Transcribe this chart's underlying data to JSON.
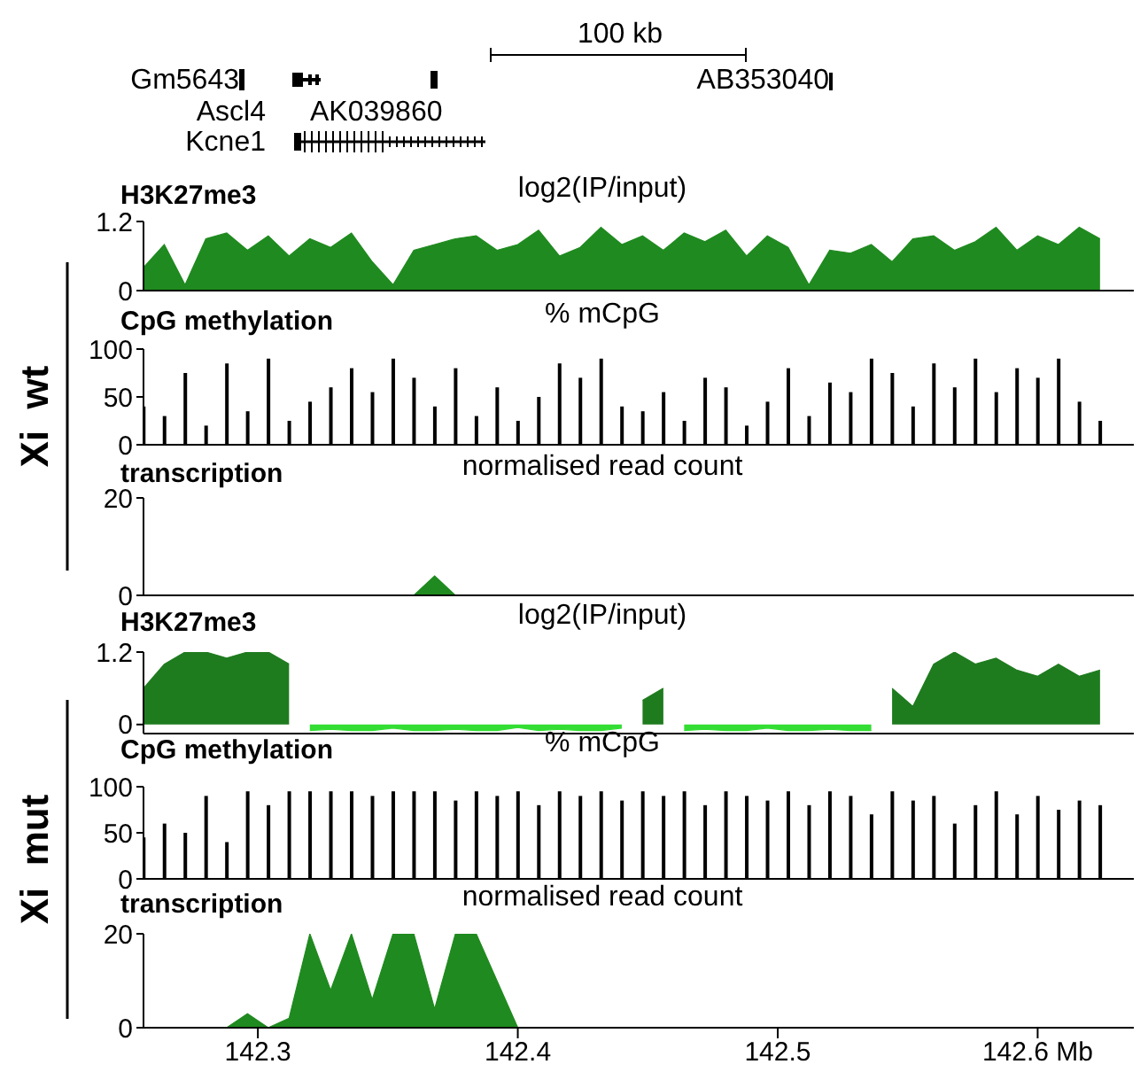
{
  "chart_data": [
    {
      "type": "area",
      "title": "H3K27me3",
      "subtitle": "log2(IP/input)",
      "annotations": [
        "100 kb",
        "Gm5643",
        "Ascl4",
        "AK039860",
        "Kcne1",
        "AB353040",
        "Xi  wt"
      ],
      "x": [
        142.256,
        142.264,
        142.272,
        142.28,
        142.288,
        142.296,
        142.304,
        142.312,
        142.32,
        142.328,
        142.336,
        142.344,
        142.352,
        142.36,
        142.368,
        142.376,
        142.384,
        142.392,
        142.4,
        142.408,
        142.416,
        142.424,
        142.432,
        142.44,
        142.448,
        142.456,
        142.464,
        142.472,
        142.48,
        142.488,
        142.496,
        142.504,
        142.512,
        142.52,
        142.528,
        142.536,
        142.544,
        142.552,
        142.56,
        142.568,
        142.576,
        142.584,
        142.592,
        142.6,
        142.608,
        142.616,
        142.624
      ],
      "xlim": [
        142.256,
        142.637
      ],
      "xticks": [
        142.3,
        142.4,
        142.5,
        142.6
      ],
      "ylim": [
        0,
        1.2
      ],
      "yticks": [
        0,
        1.2
      ],
      "tick_labels": "y",
      "series": [
        {
          "color": "#1f8a1f",
          "values": [
            0.4,
            0.8,
            0.1,
            0.9,
            1.0,
            0.7,
            0.95,
            0.6,
            0.9,
            0.75,
            1.0,
            0.5,
            0.1,
            0.7,
            0.8,
            0.9,
            0.95,
            0.7,
            0.8,
            1.05,
            0.6,
            0.75,
            1.1,
            0.8,
            0.95,
            0.7,
            1.0,
            0.85,
            1.05,
            0.6,
            0.95,
            0.75,
            0.1,
            0.7,
            0.65,
            0.8,
            0.5,
            0.9,
            0.95,
            0.7,
            0.85,
            1.1,
            0.7,
            0.95,
            0.8,
            1.1,
            0.9
          ]
        }
      ]
    },
    {
      "type": "bar",
      "title": "CpG methylation",
      "subtitle": "% mCpG",
      "x": [
        142.256,
        142.264,
        142.272,
        142.28,
        142.288,
        142.296,
        142.304,
        142.312,
        142.32,
        142.328,
        142.336,
        142.344,
        142.352,
        142.36,
        142.368,
        142.376,
        142.384,
        142.392,
        142.4,
        142.408,
        142.416,
        142.424,
        142.432,
        142.44,
        142.448,
        142.456,
        142.464,
        142.472,
        142.48,
        142.488,
        142.496,
        142.504,
        142.512,
        142.52,
        142.528,
        142.536,
        142.544,
        142.552,
        142.56,
        142.568,
        142.576,
        142.584,
        142.592,
        142.6,
        142.608,
        142.616,
        142.624
      ],
      "xlim": [
        142.256,
        142.637
      ],
      "xticks": [
        142.3,
        142.4,
        142.5,
        142.6
      ],
      "ylim": [
        0,
        100
      ],
      "yticks": [
        0,
        50,
        100
      ],
      "tick_labels": "y",
      "series": [
        {
          "color": "#000000",
          "values": [
            40,
            30,
            75,
            20,
            85,
            35,
            90,
            25,
            45,
            60,
            80,
            55,
            90,
            70,
            40,
            80,
            30,
            60,
            25,
            50,
            85,
            70,
            90,
            40,
            35,
            55,
            25,
            70,
            60,
            20,
            45,
            80,
            30,
            65,
            55,
            90,
            75,
            40,
            85,
            60,
            90,
            55,
            80,
            70,
            90,
            45,
            25
          ]
        }
      ]
    },
    {
      "type": "area",
      "title": "transcription",
      "subtitle": "normalised read count",
      "x": [
        142.256,
        142.264,
        142.272,
        142.28,
        142.288,
        142.296,
        142.304,
        142.312,
        142.32,
        142.328,
        142.336,
        142.344,
        142.352,
        142.36,
        142.368,
        142.376,
        142.384,
        142.392,
        142.4,
        142.408,
        142.416,
        142.424,
        142.432,
        142.44,
        142.448,
        142.456,
        142.464,
        142.472,
        142.48,
        142.488,
        142.496,
        142.504,
        142.512,
        142.52,
        142.528,
        142.536,
        142.544,
        142.552,
        142.56,
        142.568,
        142.576,
        142.584,
        142.592,
        142.6,
        142.608,
        142.616,
        142.624
      ],
      "xlim": [
        142.256,
        142.637
      ],
      "xticks": [
        142.3,
        142.4,
        142.5,
        142.6
      ],
      "ylim": [
        0,
        20
      ],
      "yticks": [
        0,
        20
      ],
      "tick_labels": "y",
      "series": [
        {
          "color": "#1f8a1f",
          "values": [
            0,
            0,
            0,
            0,
            0,
            0,
            0,
            0,
            0,
            0,
            0,
            0,
            0,
            0,
            4,
            0,
            0,
            0,
            0,
            0,
            0,
            0,
            0,
            0,
            0,
            0,
            0,
            0,
            0,
            0,
            0,
            0,
            0,
            0,
            0,
            0,
            0,
            0,
            0,
            0,
            0,
            0,
            0,
            0,
            0,
            0,
            0
          ]
        }
      ]
    },
    {
      "type": "area",
      "title": "H3K27me3",
      "subtitle": "log2(IP/input)",
      "annotations": [
        "Xi  mut"
      ],
      "x": [
        142.256,
        142.264,
        142.272,
        142.28,
        142.288,
        142.296,
        142.304,
        142.312,
        142.32,
        142.328,
        142.336,
        142.344,
        142.352,
        142.36,
        142.368,
        142.376,
        142.384,
        142.392,
        142.4,
        142.408,
        142.416,
        142.424,
        142.432,
        142.44,
        142.448,
        142.456,
        142.464,
        142.472,
        142.48,
        142.488,
        142.496,
        142.504,
        142.512,
        142.52,
        142.528,
        142.536,
        142.544,
        142.552,
        142.56,
        142.568,
        142.576,
        142.584,
        142.592,
        142.6,
        142.608,
        142.616,
        142.624
      ],
      "xlim": [
        142.256,
        142.637
      ],
      "xticks": [
        142.3,
        142.4,
        142.5,
        142.6
      ],
      "ylim": [
        -0.15,
        1.2
      ],
      "yticks": [
        0,
        1.2
      ],
      "tick_labels": "y",
      "series": [
        {
          "color": "#1e7b1e",
          "values": [
            0.6,
            1.0,
            1.2,
            1.2,
            1.1,
            1.2,
            1.2,
            1.0,
            null,
            null,
            null,
            null,
            null,
            null,
            null,
            null,
            null,
            null,
            null,
            null,
            null,
            null,
            null,
            null,
            0.4,
            0.6,
            null,
            null,
            null,
            null,
            null,
            null,
            null,
            null,
            null,
            null,
            0.6,
            0.3,
            1.0,
            1.2,
            1.0,
            1.1,
            0.9,
            0.8,
            1.0,
            0.8,
            0.9
          ]
        },
        {
          "color": "#33dd33",
          "values": [
            null,
            null,
            null,
            null,
            null,
            null,
            null,
            null,
            -0.1,
            -0.08,
            -0.1,
            -0.1,
            -0.06,
            -0.1,
            -0.1,
            -0.08,
            -0.1,
            -0.1,
            -0.05,
            -0.1,
            -0.08,
            -0.1,
            -0.1,
            -0.06,
            null,
            null,
            -0.1,
            -0.08,
            -0.1,
            -0.1,
            -0.06,
            -0.1,
            -0.1,
            -0.08,
            -0.1,
            -0.1,
            null,
            null,
            null,
            null,
            null,
            null,
            null,
            null,
            null,
            null,
            null
          ]
        }
      ]
    },
    {
      "type": "bar",
      "title": "CpG methylation",
      "subtitle": "% mCpG",
      "x": [
        142.256,
        142.264,
        142.272,
        142.28,
        142.288,
        142.296,
        142.304,
        142.312,
        142.32,
        142.328,
        142.336,
        142.344,
        142.352,
        142.36,
        142.368,
        142.376,
        142.384,
        142.392,
        142.4,
        142.408,
        142.416,
        142.424,
        142.432,
        142.44,
        142.448,
        142.456,
        142.464,
        142.472,
        142.48,
        142.488,
        142.496,
        142.504,
        142.512,
        142.52,
        142.528,
        142.536,
        142.544,
        142.552,
        142.56,
        142.568,
        142.576,
        142.584,
        142.592,
        142.6,
        142.608,
        142.616,
        142.624
      ],
      "xlim": [
        142.256,
        142.637
      ],
      "xticks": [
        142.3,
        142.4,
        142.5,
        142.6
      ],
      "ylim": [
        0,
        100
      ],
      "yticks": [
        0,
        50,
        100
      ],
      "tick_labels": "y",
      "series": [
        {
          "color": "#000000",
          "values": [
            45,
            60,
            50,
            90,
            40,
            95,
            80,
            95,
            95,
            95,
            95,
            90,
            95,
            95,
            95,
            85,
            95,
            90,
            95,
            80,
            95,
            90,
            95,
            85,
            95,
            90,
            95,
            80,
            95,
            90,
            85,
            95,
            80,
            95,
            90,
            70,
            95,
            85,
            90,
            60,
            80,
            95,
            70,
            90,
            75,
            85,
            80
          ]
        }
      ]
    },
    {
      "type": "area",
      "title": "transcription",
      "subtitle": "normalised read count",
      "x": [
        142.256,
        142.264,
        142.272,
        142.28,
        142.288,
        142.296,
        142.304,
        142.312,
        142.32,
        142.328,
        142.336,
        142.344,
        142.352,
        142.36,
        142.368,
        142.376,
        142.384,
        142.392,
        142.4,
        142.408,
        142.416,
        142.424,
        142.432,
        142.44,
        142.448,
        142.456,
        142.464,
        142.472,
        142.48,
        142.488,
        142.496,
        142.504,
        142.512,
        142.52,
        142.528,
        142.536,
        142.544,
        142.552,
        142.56,
        142.568,
        142.576,
        142.584,
        142.592,
        142.6,
        142.608,
        142.616,
        142.624
      ],
      "xlim": [
        142.256,
        142.637
      ],
      "xticks": [
        142.3,
        142.4,
        142.5,
        {
          "value": 142.6,
          "label": "142.6 Mb"
        }
      ],
      "ylim": [
        0,
        20
      ],
      "yticks": [
        0,
        20
      ],
      "series": [
        {
          "color": "#1f8a1f",
          "values": [
            0,
            0,
            0,
            0,
            0,
            3,
            0,
            2,
            20,
            8,
            20,
            6,
            20,
            20,
            4,
            20,
            20,
            10,
            0,
            0,
            0,
            0,
            0,
            0,
            0,
            0,
            0,
            0,
            0,
            0,
            0,
            0,
            0,
            0,
            0,
            0,
            0,
            0,
            0,
            0,
            0,
            0,
            0,
            0,
            0,
            0,
            0
          ]
        }
      ]
    }
  ]
}
